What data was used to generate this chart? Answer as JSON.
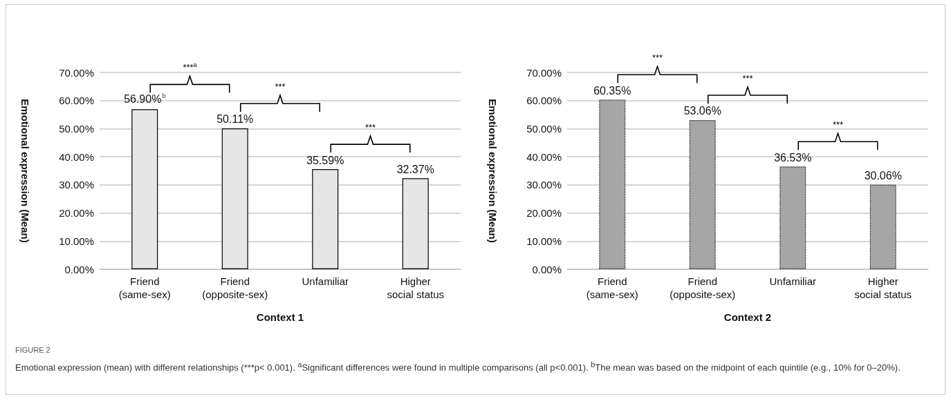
{
  "chart_data": [
    {
      "type": "bar",
      "xlabel": "Context 1",
      "ylabel": "Emotional expression (Mean)",
      "categories": [
        "Friend\n(same-sex)",
        "Friend\n(opposite-sex)",
        "Unfamiliar",
        "Higher\nsocial status"
      ],
      "values": [
        56.9,
        50.11,
        35.59,
        32.37
      ],
      "color": "#e6e6e6",
      "value_labels": [
        "56.90%$^{b}$",
        "50.11%",
        "35.59%",
        "32.37%"
      ],
      "ylim": [
        0,
        70
      ],
      "yticks": [
        {
          "value": 0,
          "label": "0.00%"
        },
        {
          "value": 10,
          "label": "10.00%"
        },
        {
          "value": 20,
          "label": "20.00%"
        },
        {
          "value": 30,
          "label": "30.00%"
        },
        {
          "value": 40,
          "label": "40.00%"
        },
        {
          "value": 50,
          "label": "50.00%"
        },
        {
          "value": 60,
          "label": "60.00%"
        },
        {
          "value": 70,
          "label": "70.00%"
        }
      ],
      "grid": "y",
      "line_style": "solid",
      "annotations": [
        "***$^{a}$",
        "***",
        "***"
      ]
    },
    {
      "type": "bar",
      "xlabel": "Context 2",
      "ylabel": "Emotional expression (Mean)",
      "categories": [
        "Friend\n(same-sex)",
        "Friend\n(opposite-sex)",
        "Unfamiliar",
        "Higher\nsocial status"
      ],
      "values": [
        60.35,
        53.06,
        36.53,
        30.06
      ],
      "color": "#a6a6a6",
      "value_labels": [
        "60.35%",
        "53.06%",
        "36.53%",
        "30.06%"
      ],
      "ylim": [
        0,
        70
      ],
      "yticks": [
        {
          "value": 0,
          "label": "0.00%"
        },
        {
          "value": 10,
          "label": "10.00%"
        },
        {
          "value": 20,
          "label": "20.00%"
        },
        {
          "value": 30,
          "label": "30.00%"
        },
        {
          "value": 40,
          "label": "40.00%"
        },
        {
          "value": 50,
          "label": "50.00%"
        },
        {
          "value": 60,
          "label": "60.00%"
        },
        {
          "value": 70,
          "label": "70.00%"
        }
      ],
      "grid": "y",
      "line_style": "dotted",
      "annotations": [
        "***",
        "***",
        "***",
        "FIGURE 2",
        "Emotional expression (mean) with different relationships (***p< 0.001). $^{a}$Significant differences were found in multiple comparisons (all p<0.001). $^{b}$The mean was based on the midpoint of each quintile (e.g., 10% for 0–20%)."
      ]
    }
  ]
}
